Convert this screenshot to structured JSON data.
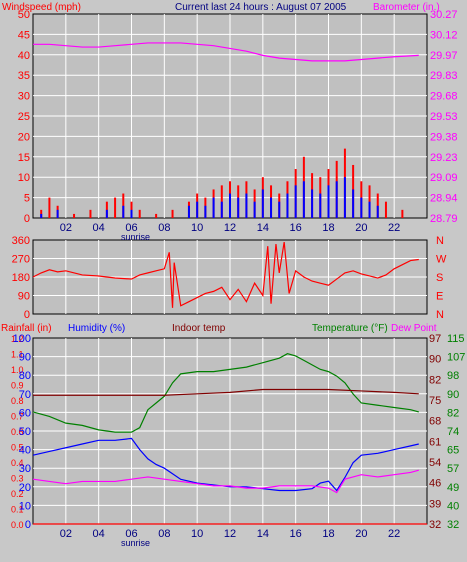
{
  "header": {
    "left_title": "Windspeed (mph)",
    "center_title": "Current last 24 hours : August 07 2005",
    "right_title": "Barometer (in.)"
  },
  "colors": {
    "background": "#c8c8c8",
    "plot_bg": "#c0c0c0",
    "grid": "#ffffff",
    "red": "#ff0000",
    "blue": "#0000ff",
    "magenta": "#ff00ff",
    "green": "#008000",
    "maroon": "#800000",
    "navy": "#000080"
  },
  "x_ticks": [
    "02",
    "04",
    "06",
    "08",
    "10",
    "12",
    "14",
    "16",
    "18",
    "20",
    "22"
  ],
  "sunrise_label": "sunrise",
  "panel1": {
    "left_ticks": [
      "0",
      "5",
      "10",
      "15",
      "20",
      "25",
      "30",
      "35",
      "40",
      "45",
      "50"
    ],
    "right_ticks": [
      "28.79",
      "28.94",
      "29.09",
      "29.23",
      "29.38",
      "29.53",
      "29.68",
      "29.83",
      "29.97",
      "30.12",
      "30.27"
    ]
  },
  "panel2": {
    "left_ticks": [
      "0",
      "90",
      "180",
      "270",
      "360"
    ],
    "right_ticks": [
      "N",
      "E",
      "S",
      "W",
      "N"
    ]
  },
  "panel3": {
    "titles": {
      "rain": "Rainfall (in)",
      "humidity": "Humidity (%)",
      "indoor": "Indoor temp",
      "temperature": "Temperature (°F)",
      "dewpoint": "Dew Point"
    },
    "rain_ticks": [
      "0.0",
      "0.1",
      "0.2",
      "0.3",
      "0.4",
      "0.5",
      "0.6",
      "0.7",
      "0.8",
      "0.9",
      "1.0",
      "1.1",
      "1.2"
    ],
    "humidity_ticks": [
      "0",
      "10",
      "20",
      "30",
      "40",
      "50",
      "60",
      "70",
      "80",
      "90",
      "100"
    ],
    "indoor_ticks": [
      "32",
      "39",
      "46",
      "54",
      "61",
      "68",
      "75",
      "82",
      "90",
      "97"
    ],
    "temp_ticks": [
      "32",
      "40",
      "49",
      "57",
      "65",
      "74",
      "82",
      "90",
      "98",
      "107",
      "115"
    ]
  },
  "chart_data": [
    {
      "type": "bar",
      "name": "windspeed",
      "ylim": [
        0,
        50
      ],
      "xlim": [
        0,
        24
      ],
      "series": [
        {
          "name": "Windspeed (mph)",
          "color": "#ff0000",
          "x": [
            0.5,
            1.0,
            1.5,
            2.5,
            3.5,
            4.5,
            5.0,
            5.5,
            6.0,
            6.5,
            7.5,
            8.5,
            9.5,
            10.0,
            10.5,
            11.0,
            11.5,
            12.0,
            12.5,
            13.0,
            13.5,
            14.0,
            14.5,
            15.0,
            15.5,
            16.0,
            16.5,
            17.0,
            17.5,
            18.0,
            18.5,
            19.0,
            19.5,
            20.0,
            20.5,
            21.0,
            21.5,
            22.5
          ],
          "values": [
            2,
            5,
            3,
            1,
            2,
            4,
            5,
            6,
            4,
            2,
            1,
            2,
            4,
            6,
            5,
            7,
            8,
            9,
            8,
            9,
            7,
            10,
            8,
            6,
            9,
            12,
            15,
            11,
            10,
            12,
            14,
            17,
            13,
            9,
            8,
            6,
            4,
            2
          ]
        },
        {
          "name": "Gust",
          "color": "#0000ff",
          "x": [
            0.5,
            1.5,
            4.5,
            5.5,
            6.0,
            9.5,
            10.0,
            10.5,
            11.0,
            11.5,
            12.0,
            12.5,
            13.0,
            13.5,
            14.0,
            14.5,
            15.0,
            15.5,
            16.0,
            16.5,
            17.0,
            17.5,
            18.0,
            18.5,
            19.0,
            19.5,
            20.0,
            20.5,
            21.0
          ],
          "values": [
            1,
            2,
            2,
            3,
            2,
            3,
            4,
            3,
            5,
            4,
            6,
            5,
            6,
            4,
            7,
            5,
            4,
            6,
            8,
            9,
            7,
            6,
            8,
            9,
            10,
            7,
            5,
            4,
            3
          ]
        },
        {
          "name": "Barometer (in.)",
          "color": "#ff00ff",
          "axis": "right",
          "x": [
            0,
            1,
            2,
            3,
            4,
            5,
            6,
            7,
            8,
            9,
            10,
            11,
            12,
            13,
            14,
            15,
            16,
            17,
            18,
            19,
            20,
            21,
            22,
            23.5
          ],
          "values": [
            30.05,
            30.05,
            30.04,
            30.03,
            30.03,
            30.04,
            30.05,
            30.06,
            30.06,
            30.06,
            30.05,
            30.04,
            30.02,
            30.0,
            29.97,
            29.95,
            29.94,
            29.93,
            29.93,
            29.93,
            29.94,
            29.95,
            29.96,
            29.97
          ]
        }
      ],
      "right_ylim": [
        28.79,
        30.27
      ]
    },
    {
      "type": "line",
      "name": "wind direction",
      "ylim": [
        0,
        360
      ],
      "xlim": [
        0,
        24
      ],
      "series": [
        {
          "name": "Direction",
          "color": "#ff0000",
          "x": [
            0,
            0.5,
            1,
            1.5,
            2,
            3,
            4,
            5,
            6,
            6.5,
            7,
            7.5,
            8,
            8.3,
            8.5,
            8.6,
            9,
            9.5,
            10,
            10.5,
            11,
            11.5,
            12,
            12.5,
            13,
            13.5,
            14,
            14.3,
            14.5,
            14.8,
            15,
            15.3,
            15.6,
            16,
            16.5,
            17,
            17.5,
            18,
            18.5,
            19,
            19.5,
            20,
            20.5,
            21,
            21.5,
            22,
            22.5,
            23,
            23.5
          ],
          "values": [
            180,
            200,
            215,
            205,
            210,
            190,
            185,
            175,
            170,
            190,
            200,
            210,
            220,
            300,
            30,
            250,
            40,
            60,
            80,
            100,
            110,
            130,
            70,
            120,
            60,
            150,
            90,
            330,
            50,
            340,
            200,
            350,
            100,
            210,
            180,
            160,
            150,
            140,
            170,
            200,
            210,
            195,
            185,
            175,
            190,
            220,
            240,
            260,
            265
          ]
        }
      ]
    },
    {
      "type": "line",
      "name": "temperature, humidity, rainfall",
      "xlim": [
        0,
        24
      ],
      "series": [
        {
          "name": "Temperature (°F)",
          "color": "#008000",
          "axis": "temperature",
          "ylim": [
            32,
            115
          ],
          "x": [
            0,
            1,
            2,
            3,
            4,
            5,
            6,
            6.5,
            7,
            7.5,
            8,
            8.5,
            9,
            10,
            11,
            12,
            13,
            14,
            15,
            15.5,
            16,
            16.5,
            17,
            17.5,
            18,
            18.5,
            19,
            19.5,
            20,
            21,
            22,
            23,
            23.5
          ],
          "values": [
            82,
            80,
            77,
            76,
            74,
            73,
            73,
            75,
            83,
            86,
            89,
            95,
            99,
            100,
            100,
            101,
            102,
            104,
            106,
            108,
            107,
            105,
            103,
            101,
            100,
            98,
            95,
            90,
            86,
            85,
            84,
            83,
            82
          ]
        },
        {
          "name": "Indoor temp",
          "color": "#800000",
          "axis": "indoor",
          "ylim": [
            32,
            97
          ],
          "x": [
            0,
            2,
            4,
            6,
            8,
            10,
            12,
            14,
            16,
            18,
            20,
            22,
            23.5
          ],
          "values": [
            77,
            77,
            77,
            77,
            77,
            77.5,
            78,
            79,
            79,
            79,
            78.5,
            78,
            77.5
          ]
        },
        {
          "name": "Humidity (%)",
          "color": "#0000ff",
          "axis": "humidity",
          "ylim": [
            0,
            100
          ],
          "x": [
            0,
            1,
            2,
            3,
            4,
            5,
            6,
            6.5,
            7,
            7.5,
            8,
            8.5,
            9,
            10,
            11,
            12,
            13,
            14,
            15,
            16,
            17,
            17.5,
            18,
            18.5,
            19,
            19.5,
            20,
            21,
            22,
            23,
            23.5
          ],
          "values": [
            37,
            39,
            41,
            43,
            45,
            45,
            46,
            40,
            35,
            32,
            30,
            27,
            24,
            22,
            21,
            20,
            20,
            19,
            18,
            18,
            19,
            22,
            23,
            18,
            25,
            33,
            37,
            38,
            40,
            42,
            43
          ]
        },
        {
          "name": "Dew Point",
          "color": "#ff00ff",
          "axis": "temperature",
          "ylim": [
            32,
            115
          ],
          "x": [
            0,
            1,
            2,
            3,
            4,
            5,
            6,
            7,
            8,
            9,
            10,
            11,
            12,
            13,
            14,
            15,
            16,
            17,
            18,
            18.5,
            19,
            20,
            21,
            22,
            23,
            23.5
          ],
          "values": [
            52,
            51,
            50,
            51,
            51,
            51,
            52,
            53,
            52,
            51,
            50,
            49,
            49,
            48,
            48,
            49,
            49,
            49,
            48,
            46,
            52,
            54,
            53,
            54,
            55,
            56
          ]
        },
        {
          "name": "Rainfall (in)",
          "color": "#ff0000",
          "axis": "rain",
          "ylim": [
            0,
            1.2
          ],
          "x": [
            0,
            24
          ],
          "values": [
            0,
            0
          ]
        }
      ]
    }
  ]
}
